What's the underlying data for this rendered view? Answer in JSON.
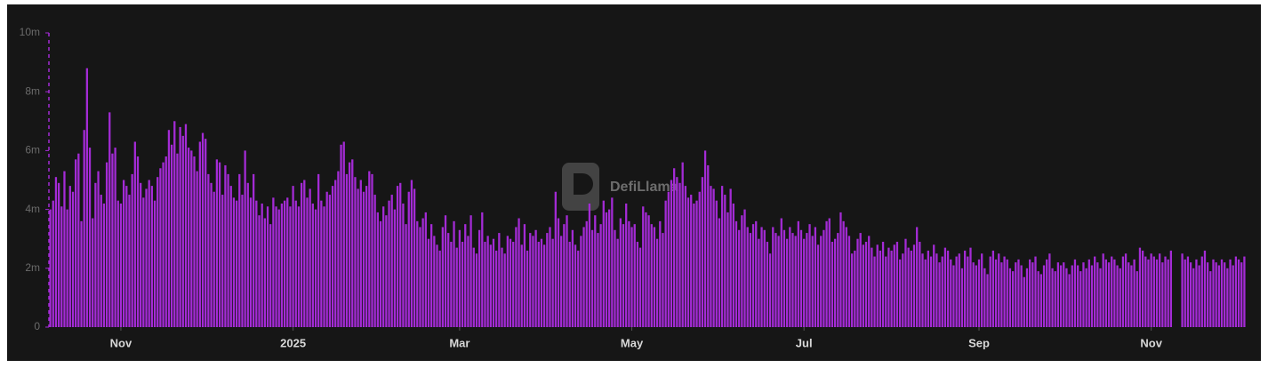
{
  "chart_data": {
    "type": "bar",
    "watermark": "DefiLlama",
    "color": "#a42bd6",
    "ylim": [
      0,
      10
    ],
    "yticks": [
      0,
      {
        "value": 2,
        "label": "2m"
      },
      {
        "value": 4,
        "label": "4m"
      },
      {
        "value": 6,
        "label": "6m"
      },
      {
        "value": 8,
        "label": "8m"
      },
      {
        "value": 10,
        "label": "10m"
      }
    ],
    "categories": [
      null,
      null,
      null,
      null,
      null,
      null,
      null,
      null,
      null,
      null,
      null,
      null,
      null,
      null,
      null,
      null,
      null,
      null,
      null,
      null,
      null,
      null,
      null,
      null,
      null,
      "Nov",
      null,
      null,
      null,
      null,
      null,
      null,
      null,
      null,
      null,
      null,
      null,
      null,
      null,
      null,
      null,
      null,
      null,
      null,
      null,
      null,
      null,
      null,
      null,
      null,
      null,
      null,
      null,
      null,
      null,
      null,
      null,
      null,
      null,
      null,
      null,
      null,
      null,
      null,
      null,
      null,
      null,
      null,
      null,
      null,
      null,
      null,
      null,
      null,
      null,
      null,
      null,
      null,
      null,
      null,
      null,
      null,
      null,
      null,
      null,
      null,
      "2025",
      null,
      null,
      null,
      null,
      null,
      null,
      null,
      null,
      null,
      null,
      null,
      null,
      null,
      null,
      null,
      null,
      null,
      null,
      null,
      null,
      null,
      null,
      null,
      null,
      null,
      null,
      null,
      null,
      null,
      null,
      null,
      null,
      null,
      null,
      null,
      null,
      null,
      null,
      null,
      null,
      null,
      null,
      null,
      null,
      null,
      null,
      null,
      null,
      null,
      null,
      null,
      null,
      null,
      null,
      null,
      null,
      null,
      null,
      "Mar",
      null,
      null,
      null,
      null,
      null,
      null,
      null,
      null,
      null,
      null,
      null,
      null,
      null,
      null,
      null,
      null,
      null,
      null,
      null,
      null,
      null,
      null,
      null,
      null,
      null,
      null,
      null,
      null,
      null,
      null,
      null,
      null,
      null,
      null,
      null,
      null,
      null,
      null,
      null,
      null,
      null,
      null,
      null,
      null,
      null,
      null,
      null,
      null,
      null,
      null,
      null,
      null,
      null,
      null,
      null,
      null,
      null,
      null,
      null,
      null,
      "May",
      null,
      null,
      null,
      null,
      null,
      null,
      null,
      null,
      null,
      null,
      null,
      null,
      null,
      null,
      null,
      null,
      null,
      null,
      null,
      null,
      null,
      null,
      null,
      null,
      null,
      null,
      null,
      null,
      null,
      null,
      null,
      null,
      null,
      null,
      null,
      null,
      null,
      null,
      null,
      null,
      null,
      null,
      null,
      null,
      null,
      null,
      null,
      null,
      null,
      null,
      null,
      null,
      null,
      null,
      null,
      null,
      null,
      null,
      null,
      null,
      "Jul",
      null,
      null,
      null,
      null,
      null,
      null,
      null,
      null,
      null,
      null,
      null,
      null,
      null,
      null,
      null,
      null,
      null,
      null,
      null,
      null,
      null,
      null,
      null,
      null,
      null,
      null,
      null,
      null,
      null,
      null,
      null,
      null,
      null,
      null,
      null,
      null,
      null,
      null,
      null,
      null,
      null,
      null,
      null,
      null,
      null,
      null,
      null,
      null,
      null,
      null,
      null,
      null,
      null,
      null,
      null,
      null,
      null,
      null,
      null,
      null,
      null,
      "Sep",
      null,
      null,
      null,
      null,
      null,
      null,
      null,
      null,
      null,
      null,
      null,
      null,
      null,
      null,
      null,
      null,
      null,
      null,
      null,
      null,
      null,
      null,
      null,
      null,
      null,
      null,
      null,
      null,
      null,
      null,
      null,
      null,
      null,
      null,
      null,
      null,
      null,
      null,
      null,
      null,
      null,
      null,
      null,
      null,
      null,
      null,
      null,
      null,
      null,
      null,
      null,
      null,
      null,
      null,
      null,
      null,
      null,
      null,
      null,
      null,
      "Nov",
      null,
      null,
      null,
      null,
      null,
      null,
      null,
      null,
      null,
      null,
      null,
      null,
      null,
      null,
      null,
      null,
      null,
      null,
      null,
      null,
      null,
      null,
      null,
      null,
      null,
      null,
      null,
      null,
      null,
      null,
      null,
      null,
      null
    ],
    "values": [
      4.0,
      4.3,
      5.1,
      4.9,
      4.1,
      5.3,
      4.0,
      4.8,
      4.6,
      5.7,
      5.9,
      3.6,
      6.7,
      8.8,
      6.1,
      3.7,
      4.9,
      5.3,
      4.5,
      4.2,
      5.6,
      7.3,
      5.9,
      6.1,
      4.3,
      4.2,
      5.0,
      4.8,
      4.5,
      5.2,
      6.3,
      5.8,
      4.9,
      4.4,
      4.7,
      5.0,
      4.8,
      4.3,
      5.1,
      5.4,
      5.6,
      5.8,
      6.7,
      6.2,
      7.0,
      5.9,
      6.8,
      6.5,
      6.9,
      6.1,
      6.0,
      5.8,
      5.3,
      6.3,
      6.6,
      6.4,
      5.2,
      4.9,
      4.6,
      5.7,
      5.6,
      4.5,
      5.5,
      5.2,
      4.8,
      4.4,
      4.3,
      5.2,
      4.5,
      6.0,
      4.9,
      4.4,
      5.2,
      4.3,
      3.8,
      4.2,
      3.7,
      4.1,
      3.5,
      4.4,
      4.1,
      4.0,
      4.2,
      4.3,
      4.4,
      4.1,
      4.8,
      4.3,
      4.1,
      4.9,
      5.0,
      4.4,
      4.7,
      4.2,
      4.0,
      5.2,
      4.3,
      4.1,
      4.6,
      4.5,
      4.8,
      5.0,
      5.3,
      6.2,
      6.3,
      5.2,
      5.6,
      5.7,
      5.1,
      4.7,
      5.0,
      4.6,
      4.8,
      5.3,
      5.2,
      4.5,
      3.9,
      3.6,
      4.1,
      3.8,
      4.3,
      4.5,
      4.0,
      4.8,
      4.9,
      4.2,
      3.5,
      4.6,
      5.0,
      4.7,
      3.6,
      3.4,
      3.7,
      3.9,
      3.0,
      3.5,
      3.1,
      2.8,
      2.6,
      3.4,
      3.8,
      3.2,
      2.9,
      3.6,
      2.7,
      3.3,
      2.9,
      3.5,
      3.1,
      3.8,
      2.7,
      2.5,
      3.3,
      3.9,
      2.9,
      3.1,
      2.8,
      3.0,
      2.6,
      3.2,
      2.7,
      2.5,
      3.1,
      3.0,
      2.9,
      3.4,
      3.7,
      2.8,
      3.5,
      2.6,
      3.2,
      3.1,
      3.3,
      2.9,
      3.0,
      2.8,
      3.2,
      3.4,
      3.0,
      4.6,
      3.7,
      3.1,
      3.5,
      3.8,
      2.9,
      3.3,
      2.8,
      2.6,
      3.1,
      3.4,
      3.6,
      4.2,
      3.3,
      3.8,
      3.2,
      3.5,
      4.3,
      3.9,
      4.0,
      4.4,
      3.3,
      3.0,
      3.7,
      3.5,
      4.2,
      3.6,
      3.4,
      3.5,
      2.9,
      2.7,
      4.1,
      3.9,
      3.8,
      3.5,
      3.4,
      3.0,
      3.6,
      3.2,
      4.3,
      4.6,
      5.0,
      5.4,
      5.1,
      4.9,
      5.6,
      4.8,
      4.4,
      4.5,
      4.2,
      4.3,
      4.6,
      5.1,
      6.0,
      5.5,
      4.8,
      4.7,
      4.3,
      3.7,
      4.8,
      4.5,
      3.9,
      4.7,
      4.2,
      3.6,
      3.3,
      3.8,
      4.0,
      3.4,
      3.2,
      3.5,
      3.6,
      3.0,
      3.4,
      3.3,
      2.9,
      2.5,
      3.4,
      3.2,
      3.1,
      3.7,
      3.3,
      3.0,
      3.4,
      3.2,
      3.1,
      3.6,
      3.3,
      3.0,
      3.2,
      3.5,
      3.1,
      3.4,
      2.8,
      3.1,
      3.3,
      3.6,
      3.7,
      2.9,
      3.0,
      3.2,
      3.9,
      3.6,
      3.4,
      3.1,
      2.5,
      2.6,
      3.0,
      3.2,
      2.8,
      2.9,
      3.1,
      2.7,
      2.4,
      2.8,
      2.6,
      2.9,
      2.4,
      2.7,
      2.6,
      2.8,
      2.9,
      2.3,
      2.5,
      3.0,
      2.7,
      2.6,
      2.8,
      3.4,
      2.9,
      2.5,
      2.3,
      2.6,
      2.4,
      2.8,
      2.5,
      2.2,
      2.4,
      2.7,
      2.6,
      2.3,
      2.1,
      2.4,
      2.5,
      2.0,
      2.6,
      2.4,
      2.7,
      2.2,
      2.1,
      2.3,
      2.5,
      2.0,
      1.8,
      2.4,
      2.6,
      2.3,
      2.5,
      2.2,
      2.4,
      2.3,
      2.0,
      1.9,
      2.2,
      2.3,
      2.1,
      1.7,
      2.0,
      2.3,
      2.2,
      2.4,
      1.9,
      1.8,
      2.1,
      2.3,
      2.5,
      2.0,
      1.9,
      2.2,
      2.1,
      2.2,
      2.0,
      1.8,
      2.1,
      2.3,
      2.1,
      1.9,
      2.2,
      2.0,
      2.3,
      2.1,
      2.4,
      2.2,
      2.0,
      2.5,
      2.3,
      2.2,
      2.4,
      2.3,
      2.1,
      2.0,
      2.4,
      2.5,
      2.2,
      2.1,
      2.3,
      1.9,
      2.7,
      2.6,
      2.4,
      2.3,
      2.5,
      2.4,
      2.3,
      2.5,
      2.2,
      2.4,
      2.3,
      2.6,
      0,
      0,
      0,
      2.5,
      2.3,
      2.4,
      2.2,
      2.0,
      2.3,
      2.1,
      2.4,
      2.6,
      2.2,
      1.9,
      2.3,
      2.2,
      2.1,
      2.3,
      2.2,
      2.0,
      2.3,
      2.1,
      2.4,
      2.3,
      2.2,
      2.4
    ]
  }
}
